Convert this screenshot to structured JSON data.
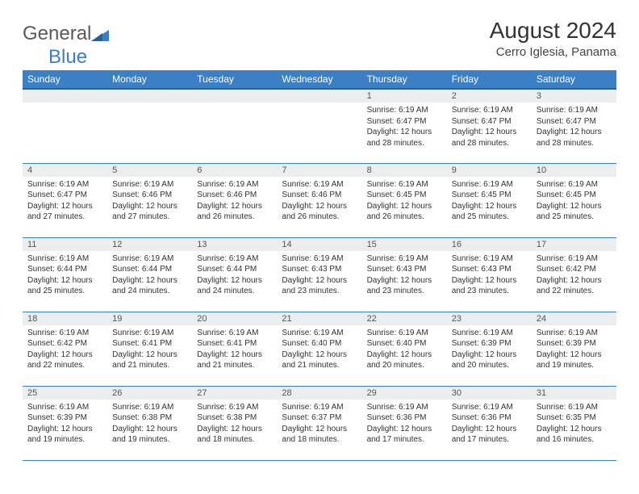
{
  "logo": {
    "text1": "General",
    "text2": "Blue"
  },
  "title": "August 2024",
  "subtitle": "Cerro Iglesia, Panama",
  "columns": [
    "Sunday",
    "Monday",
    "Tuesday",
    "Wednesday",
    "Thursday",
    "Friday",
    "Saturday"
  ],
  "colors": {
    "header_bg": "#3b7fc4",
    "header_text": "#ffffff",
    "row_border": "#3b7fc4",
    "daynum_bg": "#eceded",
    "body_text": "#333333",
    "logo_general": "#5a5a5a",
    "logo_blue": "#3b7fc4"
  },
  "typography": {
    "title_fontsize": 28,
    "subtitle_fontsize": 15,
    "header_fontsize": 12,
    "daynum_fontsize": 11,
    "cell_fontsize": 10
  },
  "weeks": [
    [
      null,
      null,
      null,
      null,
      {
        "n": "1",
        "sunrise": "Sunrise: 6:19 AM",
        "sunset": "Sunset: 6:47 PM",
        "daylight": "Daylight: 12 hours and 28 minutes."
      },
      {
        "n": "2",
        "sunrise": "Sunrise: 6:19 AM",
        "sunset": "Sunset: 6:47 PM",
        "daylight": "Daylight: 12 hours and 28 minutes."
      },
      {
        "n": "3",
        "sunrise": "Sunrise: 6:19 AM",
        "sunset": "Sunset: 6:47 PM",
        "daylight": "Daylight: 12 hours and 28 minutes."
      }
    ],
    [
      {
        "n": "4",
        "sunrise": "Sunrise: 6:19 AM",
        "sunset": "Sunset: 6:47 PM",
        "daylight": "Daylight: 12 hours and 27 minutes."
      },
      {
        "n": "5",
        "sunrise": "Sunrise: 6:19 AM",
        "sunset": "Sunset: 6:46 PM",
        "daylight": "Daylight: 12 hours and 27 minutes."
      },
      {
        "n": "6",
        "sunrise": "Sunrise: 6:19 AM",
        "sunset": "Sunset: 6:46 PM",
        "daylight": "Daylight: 12 hours and 26 minutes."
      },
      {
        "n": "7",
        "sunrise": "Sunrise: 6:19 AM",
        "sunset": "Sunset: 6:46 PM",
        "daylight": "Daylight: 12 hours and 26 minutes."
      },
      {
        "n": "8",
        "sunrise": "Sunrise: 6:19 AM",
        "sunset": "Sunset: 6:45 PM",
        "daylight": "Daylight: 12 hours and 26 minutes."
      },
      {
        "n": "9",
        "sunrise": "Sunrise: 6:19 AM",
        "sunset": "Sunset: 6:45 PM",
        "daylight": "Daylight: 12 hours and 25 minutes."
      },
      {
        "n": "10",
        "sunrise": "Sunrise: 6:19 AM",
        "sunset": "Sunset: 6:45 PM",
        "daylight": "Daylight: 12 hours and 25 minutes."
      }
    ],
    [
      {
        "n": "11",
        "sunrise": "Sunrise: 6:19 AM",
        "sunset": "Sunset: 6:44 PM",
        "daylight": "Daylight: 12 hours and 25 minutes."
      },
      {
        "n": "12",
        "sunrise": "Sunrise: 6:19 AM",
        "sunset": "Sunset: 6:44 PM",
        "daylight": "Daylight: 12 hours and 24 minutes."
      },
      {
        "n": "13",
        "sunrise": "Sunrise: 6:19 AM",
        "sunset": "Sunset: 6:44 PM",
        "daylight": "Daylight: 12 hours and 24 minutes."
      },
      {
        "n": "14",
        "sunrise": "Sunrise: 6:19 AM",
        "sunset": "Sunset: 6:43 PM",
        "daylight": "Daylight: 12 hours and 23 minutes."
      },
      {
        "n": "15",
        "sunrise": "Sunrise: 6:19 AM",
        "sunset": "Sunset: 6:43 PM",
        "daylight": "Daylight: 12 hours and 23 minutes."
      },
      {
        "n": "16",
        "sunrise": "Sunrise: 6:19 AM",
        "sunset": "Sunset: 6:43 PM",
        "daylight": "Daylight: 12 hours and 23 minutes."
      },
      {
        "n": "17",
        "sunrise": "Sunrise: 6:19 AM",
        "sunset": "Sunset: 6:42 PM",
        "daylight": "Daylight: 12 hours and 22 minutes."
      }
    ],
    [
      {
        "n": "18",
        "sunrise": "Sunrise: 6:19 AM",
        "sunset": "Sunset: 6:42 PM",
        "daylight": "Daylight: 12 hours and 22 minutes."
      },
      {
        "n": "19",
        "sunrise": "Sunrise: 6:19 AM",
        "sunset": "Sunset: 6:41 PM",
        "daylight": "Daylight: 12 hours and 21 minutes."
      },
      {
        "n": "20",
        "sunrise": "Sunrise: 6:19 AM",
        "sunset": "Sunset: 6:41 PM",
        "daylight": "Daylight: 12 hours and 21 minutes."
      },
      {
        "n": "21",
        "sunrise": "Sunrise: 6:19 AM",
        "sunset": "Sunset: 6:40 PM",
        "daylight": "Daylight: 12 hours and 21 minutes."
      },
      {
        "n": "22",
        "sunrise": "Sunrise: 6:19 AM",
        "sunset": "Sunset: 6:40 PM",
        "daylight": "Daylight: 12 hours and 20 minutes."
      },
      {
        "n": "23",
        "sunrise": "Sunrise: 6:19 AM",
        "sunset": "Sunset: 6:39 PM",
        "daylight": "Daylight: 12 hours and 20 minutes."
      },
      {
        "n": "24",
        "sunrise": "Sunrise: 6:19 AM",
        "sunset": "Sunset: 6:39 PM",
        "daylight": "Daylight: 12 hours and 19 minutes."
      }
    ],
    [
      {
        "n": "25",
        "sunrise": "Sunrise: 6:19 AM",
        "sunset": "Sunset: 6:39 PM",
        "daylight": "Daylight: 12 hours and 19 minutes."
      },
      {
        "n": "26",
        "sunrise": "Sunrise: 6:19 AM",
        "sunset": "Sunset: 6:38 PM",
        "daylight": "Daylight: 12 hours and 19 minutes."
      },
      {
        "n": "27",
        "sunrise": "Sunrise: 6:19 AM",
        "sunset": "Sunset: 6:38 PM",
        "daylight": "Daylight: 12 hours and 18 minutes."
      },
      {
        "n": "28",
        "sunrise": "Sunrise: 6:19 AM",
        "sunset": "Sunset: 6:37 PM",
        "daylight": "Daylight: 12 hours and 18 minutes."
      },
      {
        "n": "29",
        "sunrise": "Sunrise: 6:19 AM",
        "sunset": "Sunset: 6:36 PM",
        "daylight": "Daylight: 12 hours and 17 minutes."
      },
      {
        "n": "30",
        "sunrise": "Sunrise: 6:19 AM",
        "sunset": "Sunset: 6:36 PM",
        "daylight": "Daylight: 12 hours and 17 minutes."
      },
      {
        "n": "31",
        "sunrise": "Sunrise: 6:19 AM",
        "sunset": "Sunset: 6:35 PM",
        "daylight": "Daylight: 12 hours and 16 minutes."
      }
    ]
  ]
}
